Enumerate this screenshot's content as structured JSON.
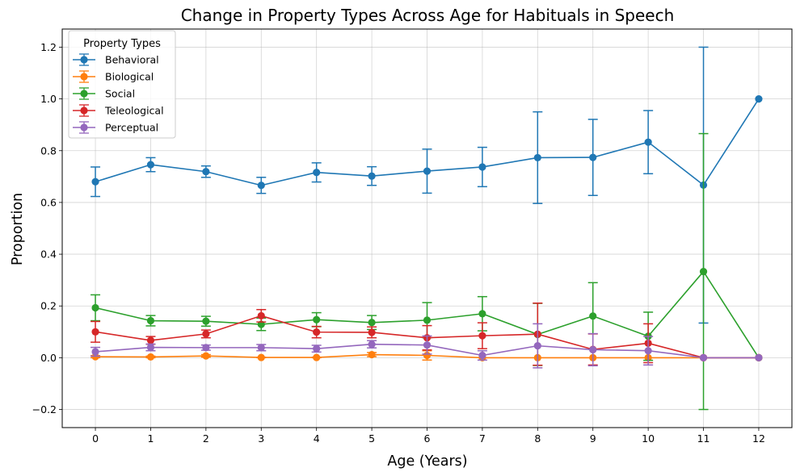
{
  "chart_data": {
    "type": "line",
    "title": "Change in Property Types Across Age for Habituals in Speech",
    "xlabel": "Age (Years)",
    "ylabel": "Proportion",
    "x": [
      0,
      1,
      2,
      3,
      4,
      5,
      6,
      7,
      8,
      9,
      10,
      11,
      12
    ],
    "xticks": [
      "0",
      "1",
      "2",
      "3",
      "4",
      "5",
      "6",
      "7",
      "8",
      "9",
      "10",
      "11",
      "12"
    ],
    "xlim": [
      -0.6,
      12.6
    ],
    "ylim": [
      -0.27,
      1.27
    ],
    "yticks": [
      -0.2,
      0.0,
      0.2,
      0.4,
      0.6,
      0.8,
      1.0,
      1.2
    ],
    "ytick_labels": [
      "−0.2",
      "0.0",
      "0.2",
      "0.4",
      "0.6",
      "0.8",
      "1.0",
      "1.2"
    ],
    "grid": true,
    "error_bars": true,
    "legend": {
      "title": "Property Types",
      "placement": "top-left"
    },
    "series": [
      {
        "name": "Behavioral",
        "color": "#1f77b4",
        "values": [
          0.68,
          0.746,
          0.719,
          0.666,
          0.716,
          0.702,
          0.721,
          0.737,
          0.773,
          0.774,
          0.833,
          0.667,
          1.0
        ],
        "errors": [
          0.057,
          0.027,
          0.022,
          0.031,
          0.037,
          0.036,
          0.085,
          0.076,
          0.177,
          0.147,
          0.122,
          0.533,
          0.0
        ]
      },
      {
        "name": "Biological",
        "color": "#ff7f0e",
        "values": [
          0.004,
          0.003,
          0.007,
          0.001,
          0.001,
          0.012,
          0.009,
          0.0,
          0.0,
          0.0,
          0.0,
          0.0,
          0.0
        ],
        "errors": [
          0.004,
          0.003,
          0.005,
          0.001,
          0.001,
          0.008,
          0.018,
          0.0,
          0.0,
          0.0,
          0.0,
          0.0,
          0.0
        ]
      },
      {
        "name": "Social",
        "color": "#2ca02c",
        "values": [
          0.193,
          0.143,
          0.141,
          0.129,
          0.147,
          0.136,
          0.145,
          0.17,
          0.09,
          0.161,
          0.083,
          0.333,
          0.0
        ],
        "errors": [
          0.05,
          0.02,
          0.019,
          0.024,
          0.027,
          0.027,
          0.068,
          0.066,
          0.12,
          0.129,
          0.093,
          0.533,
          0.0
        ]
      },
      {
        "name": "Teleological",
        "color": "#d62728",
        "values": [
          0.1,
          0.067,
          0.092,
          0.162,
          0.099,
          0.098,
          0.077,
          0.085,
          0.091,
          0.032,
          0.056,
          0.0,
          0.0
        ],
        "errors": [
          0.04,
          0.015,
          0.015,
          0.024,
          0.022,
          0.021,
          0.047,
          0.05,
          0.12,
          0.06,
          0.075,
          0.0,
          0.0
        ]
      },
      {
        "name": "Perceptual",
        "color": "#9467bd",
        "values": [
          0.023,
          0.04,
          0.039,
          0.039,
          0.035,
          0.052,
          0.049,
          0.009,
          0.046,
          0.031,
          0.027,
          0.0,
          0.0
        ],
        "errors": [
          0.017,
          0.013,
          0.01,
          0.012,
          0.013,
          0.014,
          0.035,
          0.018,
          0.085,
          0.062,
          0.055,
          0.0,
          0.0
        ]
      }
    ]
  }
}
